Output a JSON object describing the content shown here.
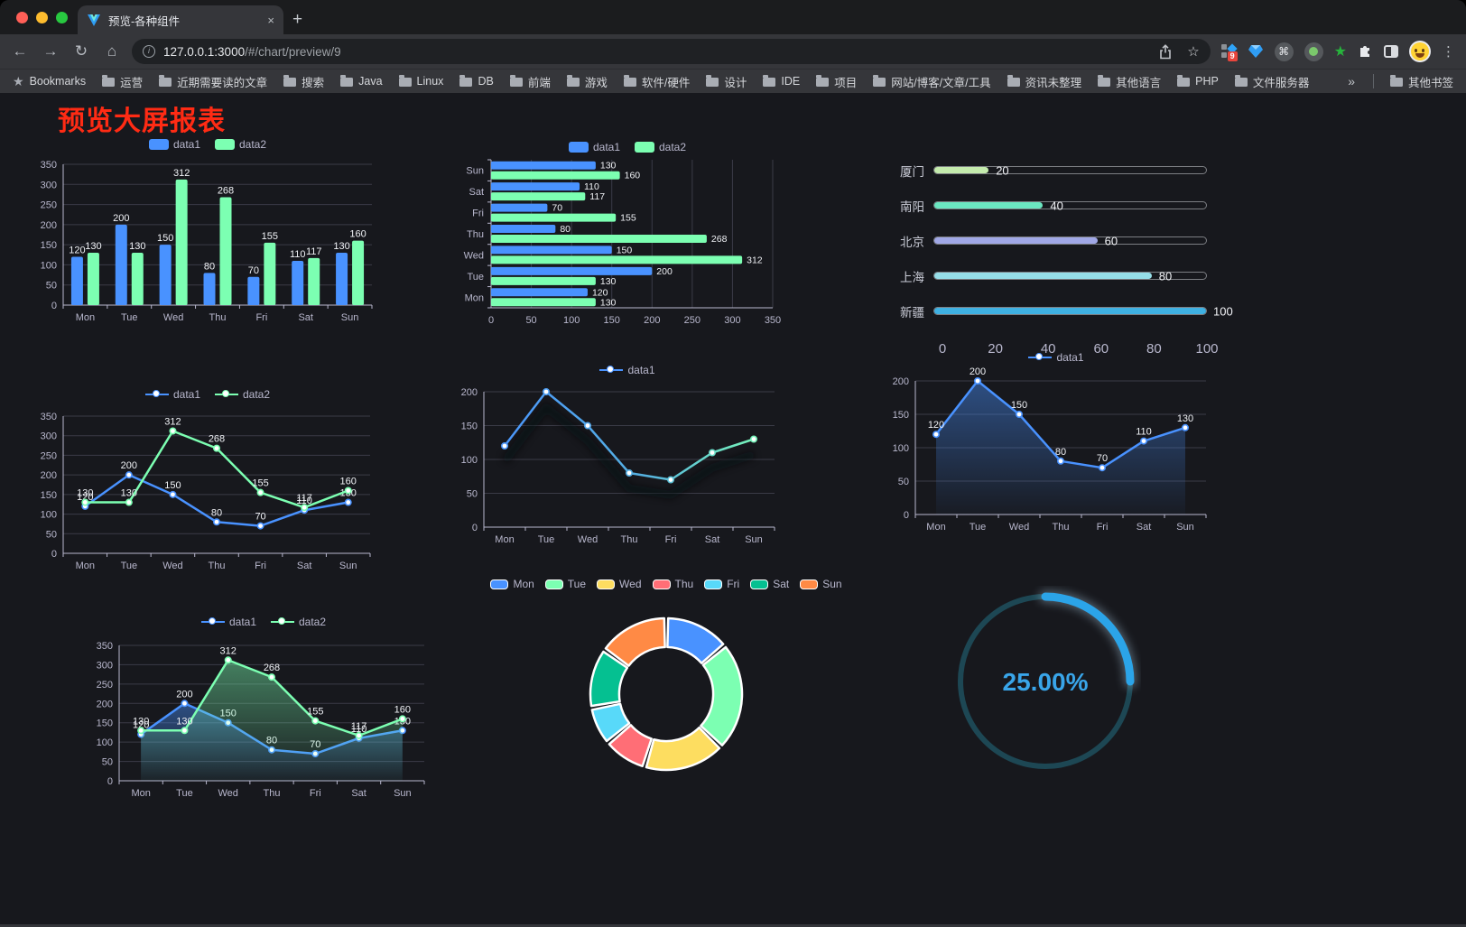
{
  "browser": {
    "tab_title": "预览-各种组件",
    "tab_close_glyph": "×",
    "new_tab_glyph": "+",
    "back_glyph": "←",
    "forward_glyph": "→",
    "reload_glyph": "↻",
    "home_glyph": "⌂",
    "url_host": "127.0.0.1:3000",
    "url_path": "/#/chart/preview/9",
    "extension_badge": "9",
    "bookmarks_label": "Bookmarks",
    "bookmarks": [
      "运营",
      "近期需要读的文章",
      "搜索",
      "Java",
      "Linux",
      "DB",
      "前端",
      "游戏",
      "软件/硬件",
      "设计",
      "IDE",
      "项目",
      "网站/博客/文章/工具",
      "资讯未整理",
      "其他语言",
      "PHP",
      "文件服务器"
    ],
    "bookmarks_overflow_glyph": "»",
    "other_bookmarks_label": "其他书签"
  },
  "page": {
    "title": "预览大屏报表",
    "title_color": "#ff2b14",
    "background": "#17181d"
  },
  "chart_data": [
    {
      "id": "grouped-bar",
      "type": "bar",
      "categories": [
        "Mon",
        "Tue",
        "Wed",
        "Thu",
        "Fri",
        "Sat",
        "Sun"
      ],
      "series": [
        {
          "name": "data1",
          "color": "#4992ff",
          "values": [
            120,
            200,
            150,
            80,
            70,
            110,
            130
          ]
        },
        {
          "name": "data2",
          "color": "#7cffb2",
          "values": [
            130,
            130,
            312,
            268,
            155,
            117,
            160
          ]
        }
      ],
      "ylim": [
        0,
        350
      ],
      "ytick": 50,
      "grid": true,
      "legend_position": "top",
      "value_labels": true
    },
    {
      "id": "horizontal-bar",
      "type": "hbar",
      "categories": [
        "Mon",
        "Tue",
        "Wed",
        "Thu",
        "Fri",
        "Sat",
        "Sun"
      ],
      "display_order_top_to_bottom": [
        "Sun",
        "Sat",
        "Fri",
        "Thu",
        "Wed",
        "Tue",
        "Mon"
      ],
      "series": [
        {
          "name": "data1",
          "color": "#4992ff",
          "values": [
            120,
            200,
            150,
            80,
            70,
            110,
            130
          ]
        },
        {
          "name": "data2",
          "color": "#7cffb2",
          "values": [
            130,
            130,
            312,
            268,
            155,
            117,
            160
          ]
        }
      ],
      "xlim": [
        0,
        350
      ],
      "xtick": 50,
      "grid": true,
      "legend_position": "top",
      "value_labels": true
    },
    {
      "id": "progress-bars",
      "type": "bar",
      "variant": "progress",
      "items": [
        {
          "label": "厦门",
          "value": 20,
          "color": "#c4ebad"
        },
        {
          "label": "南阳",
          "value": 40,
          "color": "#6be6c1"
        },
        {
          "label": "北京",
          "value": 60,
          "color": "#a0a7e6"
        },
        {
          "label": "上海",
          "value": 80,
          "color": "#96dee8"
        },
        {
          "label": "新疆",
          "value": 100,
          "color": "#3fb1e3"
        }
      ],
      "xlim": [
        0,
        100
      ],
      "ticks": [
        0,
        20,
        40,
        60,
        80,
        100
      ]
    },
    {
      "id": "two-line",
      "type": "line",
      "categories": [
        "Mon",
        "Tue",
        "Wed",
        "Thu",
        "Fri",
        "Sat",
        "Sun"
      ],
      "series": [
        {
          "name": "data1",
          "color": "#4992ff",
          "values": [
            120,
            200,
            150,
            80,
            70,
            110,
            130
          ]
        },
        {
          "name": "data2",
          "color": "#7cffb2",
          "values": [
            130,
            130,
            312,
            268,
            155,
            117,
            160
          ]
        }
      ],
      "ylim": [
        0,
        350
      ],
      "ytick": 50,
      "grid": true,
      "value_labels": true,
      "legend_position": "top"
    },
    {
      "id": "gradient-line",
      "type": "line",
      "variant": "gradient-shadow",
      "categories": [
        "Mon",
        "Tue",
        "Wed",
        "Thu",
        "Fri",
        "Sat",
        "Sun"
      ],
      "series": [
        {
          "name": "data1",
          "color": "#4992ff",
          "values": [
            120,
            200,
            150,
            80,
            70,
            110,
            130
          ]
        }
      ],
      "gradient": [
        "#4992ff",
        "#7cffb2"
      ],
      "ylim": [
        0,
        200
      ],
      "ytick": 50,
      "grid": true,
      "value_labels": false,
      "legend_position": "top"
    },
    {
      "id": "area-line-single",
      "type": "area",
      "categories": [
        "Mon",
        "Tue",
        "Wed",
        "Thu",
        "Fri",
        "Sat",
        "Sun"
      ],
      "series": [
        {
          "name": "data1",
          "color": "#4992ff",
          "values": [
            120,
            200,
            150,
            80,
            70,
            110,
            130
          ],
          "area": true
        }
      ],
      "ylim": [
        0,
        200
      ],
      "ytick": 50,
      "grid": true,
      "value_labels": true,
      "legend_position": "top"
    },
    {
      "id": "area-line-double",
      "type": "area",
      "categories": [
        "Mon",
        "Tue",
        "Wed",
        "Thu",
        "Fri",
        "Sat",
        "Sun"
      ],
      "series": [
        {
          "name": "data1",
          "color": "#4992ff",
          "values": [
            120,
            200,
            150,
            80,
            70,
            110,
            130
          ],
          "area": true
        },
        {
          "name": "data2",
          "color": "#7cffb2",
          "values": [
            130,
            130,
            312,
            268,
            155,
            117,
            160
          ],
          "area": true
        }
      ],
      "ylim": [
        0,
        350
      ],
      "ytick": 50,
      "grid": true,
      "value_labels": true,
      "legend_position": "top"
    },
    {
      "id": "donut",
      "type": "pie",
      "categories": [
        "Mon",
        "Tue",
        "Wed",
        "Thu",
        "Fri",
        "Sat",
        "Sun"
      ],
      "values": [
        120,
        200,
        150,
        80,
        70,
        110,
        130
      ],
      "colors": [
        "#4992ff",
        "#7cffb2",
        "#fddd60",
        "#ff6e76",
        "#58d9f9",
        "#05c091",
        "#ff8a45"
      ],
      "inner_radius_ratio": 0.62,
      "legend_position": "top"
    },
    {
      "id": "gauge",
      "type": "gauge",
      "label": "25.00%",
      "percent": 25,
      "color": "#2ba4e8",
      "track_color": "#1d4754"
    }
  ]
}
